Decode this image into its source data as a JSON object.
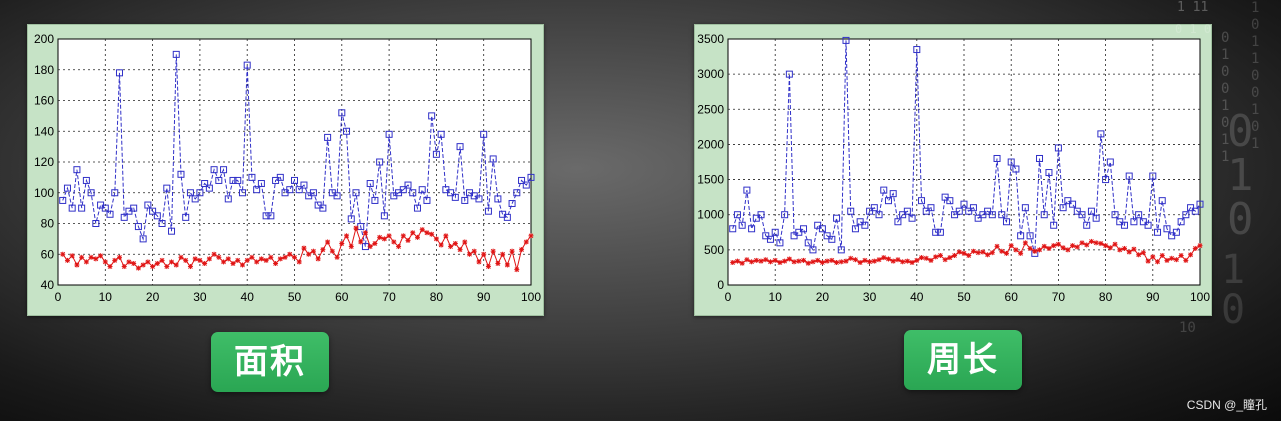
{
  "charts": [
    {
      "caption": "面积"
    },
    {
      "caption": "周长"
    }
  ],
  "watermark": "CSDN @_瞳孔",
  "chart_data": [
    {
      "type": "line",
      "title": "",
      "xlabel": "",
      "ylabel": "",
      "xlim": [
        0,
        100
      ],
      "ylim": [
        40,
        200
      ],
      "xticks": [
        0,
        10,
        20,
        30,
        40,
        50,
        60,
        70,
        80,
        90,
        100
      ],
      "yticks": [
        40,
        60,
        80,
        100,
        120,
        140,
        160,
        180,
        200
      ],
      "grid": true,
      "x_start": 1,
      "series": [
        {
          "color": "#3030c8",
          "marker": "square",
          "dashed": true,
          "values": [
            95,
            103,
            90,
            115,
            90,
            108,
            100,
            80,
            92,
            90,
            86,
            100,
            178,
            84,
            88,
            90,
            78,
            70,
            92,
            88,
            85,
            80,
            103,
            75,
            190,
            112,
            84,
            100,
            96,
            100,
            106,
            103,
            115,
            108,
            115,
            96,
            108,
            108,
            100,
            183,
            110,
            102,
            106,
            85,
            85,
            108,
            110,
            100,
            102,
            108,
            102,
            105,
            98,
            100,
            92,
            90,
            136,
            100,
            98,
            152,
            140,
            83,
            100,
            78,
            65,
            106,
            95,
            120,
            85,
            138,
            98,
            100,
            102,
            105,
            100,
            90,
            102,
            95,
            150,
            125,
            138,
            102,
            100,
            97,
            130,
            95,
            100,
            98,
            96,
            138,
            88,
            122,
            96,
            86,
            84,
            93,
            100,
            108,
            105,
            110
          ]
        },
        {
          "color": "#e01414",
          "marker": "star",
          "dashed": false,
          "values": [
            60,
            56,
            59,
            53,
            58,
            55,
            58,
            57,
            59,
            55,
            52,
            56,
            58,
            52,
            55,
            54,
            51,
            53,
            55,
            52,
            54,
            56,
            52,
            55,
            53,
            58,
            56,
            52,
            57,
            56,
            54,
            57,
            60,
            58,
            55,
            57,
            54,
            56,
            53,
            56,
            58,
            55,
            57,
            56,
            58,
            54,
            57,
            58,
            60,
            58,
            55,
            64,
            60,
            62,
            57,
            63,
            68,
            62,
            58,
            67,
            72,
            65,
            77,
            68,
            74,
            65,
            67,
            71,
            70,
            72,
            68,
            65,
            72,
            69,
            74,
            71,
            76,
            74,
            73,
            70,
            66,
            72,
            65,
            67,
            63,
            68,
            60,
            62,
            55,
            60,
            52,
            62,
            54,
            60,
            53,
            62,
            50,
            63,
            68,
            72
          ]
        }
      ]
    },
    {
      "type": "line",
      "title": "",
      "xlabel": "",
      "ylabel": "",
      "xlim": [
        0,
        100
      ],
      "ylim": [
        0,
        3500
      ],
      "xticks": [
        0,
        10,
        20,
        30,
        40,
        50,
        60,
        70,
        80,
        90,
        100
      ],
      "yticks": [
        0,
        500,
        1000,
        1500,
        2000,
        2500,
        3000,
        3500
      ],
      "grid": true,
      "x_start": 1,
      "series": [
        {
          "color": "#3030c8",
          "marker": "square",
          "dashed": true,
          "values": [
            800,
            1000,
            850,
            1350,
            800,
            950,
            1000,
            700,
            650,
            750,
            600,
            1000,
            3000,
            700,
            750,
            800,
            600,
            500,
            850,
            800,
            700,
            650,
            950,
            500,
            3480,
            1050,
            800,
            900,
            850,
            1050,
            1100,
            1000,
            1350,
            1200,
            1300,
            900,
            1000,
            1050,
            950,
            3350,
            1200,
            1050,
            1100,
            750,
            750,
            1250,
            1200,
            1000,
            1050,
            1150,
            1050,
            1100,
            950,
            1000,
            1050,
            1000,
            1800,
            1000,
            900,
            1750,
            1650,
            700,
            1100,
            700,
            450,
            1800,
            1000,
            1600,
            850,
            1950,
            1100,
            1200,
            1150,
            1050,
            1000,
            850,
            1050,
            950,
            2150,
            1500,
            1750,
            1000,
            900,
            850,
            1550,
            900,
            1000,
            900,
            850,
            1550,
            750,
            1200,
            800,
            700,
            750,
            900,
            1000,
            1100,
            1050,
            1150
          ]
        },
        {
          "color": "#e01414",
          "marker": "star",
          "dashed": false,
          "values": [
            320,
            340,
            310,
            360,
            330,
            350,
            340,
            360,
            330,
            350,
            320,
            340,
            370,
            330,
            340,
            350,
            310,
            330,
            350,
            320,
            340,
            350,
            320,
            330,
            340,
            380,
            360,
            320,
            350,
            330,
            340,
            360,
            390,
            370,
            340,
            360,
            330,
            340,
            320,
            350,
            390,
            380,
            350,
            400,
            420,
            360,
            390,
            420,
            470,
            450,
            420,
            480,
            460,
            470,
            430,
            460,
            550,
            480,
            450,
            560,
            500,
            450,
            600,
            520,
            480,
            500,
            550,
            520,
            560,
            580,
            530,
            500,
            560,
            540,
            600,
            570,
            620,
            600,
            590,
            560,
            530,
            580,
            500,
            520,
            470,
            510,
            430,
            460,
            340,
            400,
            330,
            420,
            350,
            380,
            360,
            420,
            350,
            430,
            520,
            560
          ]
        }
      ]
    }
  ]
}
